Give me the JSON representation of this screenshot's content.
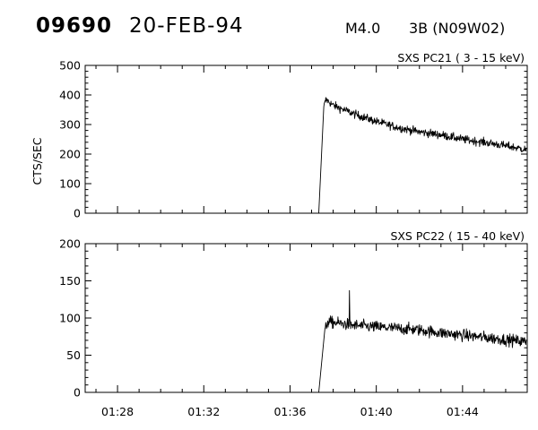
{
  "header": {
    "event_id": "09690",
    "date": "20-FEB-94",
    "flare_class": "M4.0",
    "importance": "3B (N09W02)"
  },
  "chart_data": [
    {
      "type": "line",
      "title": "SXS PC21  (  3 - 15 keV)",
      "ylabel": "CTS/SEC",
      "xlabel": "",
      "xlim": [
        "01:26:30",
        "01:47:00"
      ],
      "ylim": [
        0,
        500
      ],
      "yticks": [
        "0",
        "100",
        "200",
        "300",
        "400",
        "500"
      ],
      "xticks": [
        "01:28",
        "01:32",
        "01:36",
        "01:40",
        "01:44"
      ],
      "show_xtick_labels": false,
      "series": [
        {
          "x": [
            "01:37:20",
            "01:37:34",
            "01:37:40",
            "01:38:00",
            "01:38:30",
            "01:39:00",
            "01:40:00",
            "01:41:00",
            "01:42:00",
            "01:43:00",
            "01:44:00",
            "01:45:00",
            "01:46:00",
            "01:46:58"
          ],
          "values": [
            0,
            360,
            385,
            365,
            350,
            335,
            310,
            290,
            275,
            265,
            250,
            240,
            228,
            215
          ]
        }
      ]
    },
    {
      "type": "line",
      "title": "SXS PC22  ( 15 - 40 keV)",
      "ylabel": "",
      "xlabel": "",
      "xlim": [
        "01:26:30",
        "01:47:00"
      ],
      "ylim": [
        0,
        200
      ],
      "yticks": [
        "0",
        "50",
        "100",
        "150",
        "200"
      ],
      "xticks": [
        "01:28",
        "01:32",
        "01:36",
        "01:40",
        "01:44"
      ],
      "show_xtick_labels": true,
      "series": [
        {
          "x": [
            "01:37:20",
            "01:37:36",
            "01:37:44",
            "01:38:30",
            "01:39:00",
            "01:40:00",
            "01:41:00",
            "01:42:00",
            "01:43:00",
            "01:44:00",
            "01:45:00",
            "01:46:00",
            "01:46:58"
          ],
          "values": [
            0,
            80,
            95,
            92,
            90,
            88,
            86,
            84,
            80,
            77,
            74,
            71,
            68
          ]
        }
      ]
    }
  ]
}
